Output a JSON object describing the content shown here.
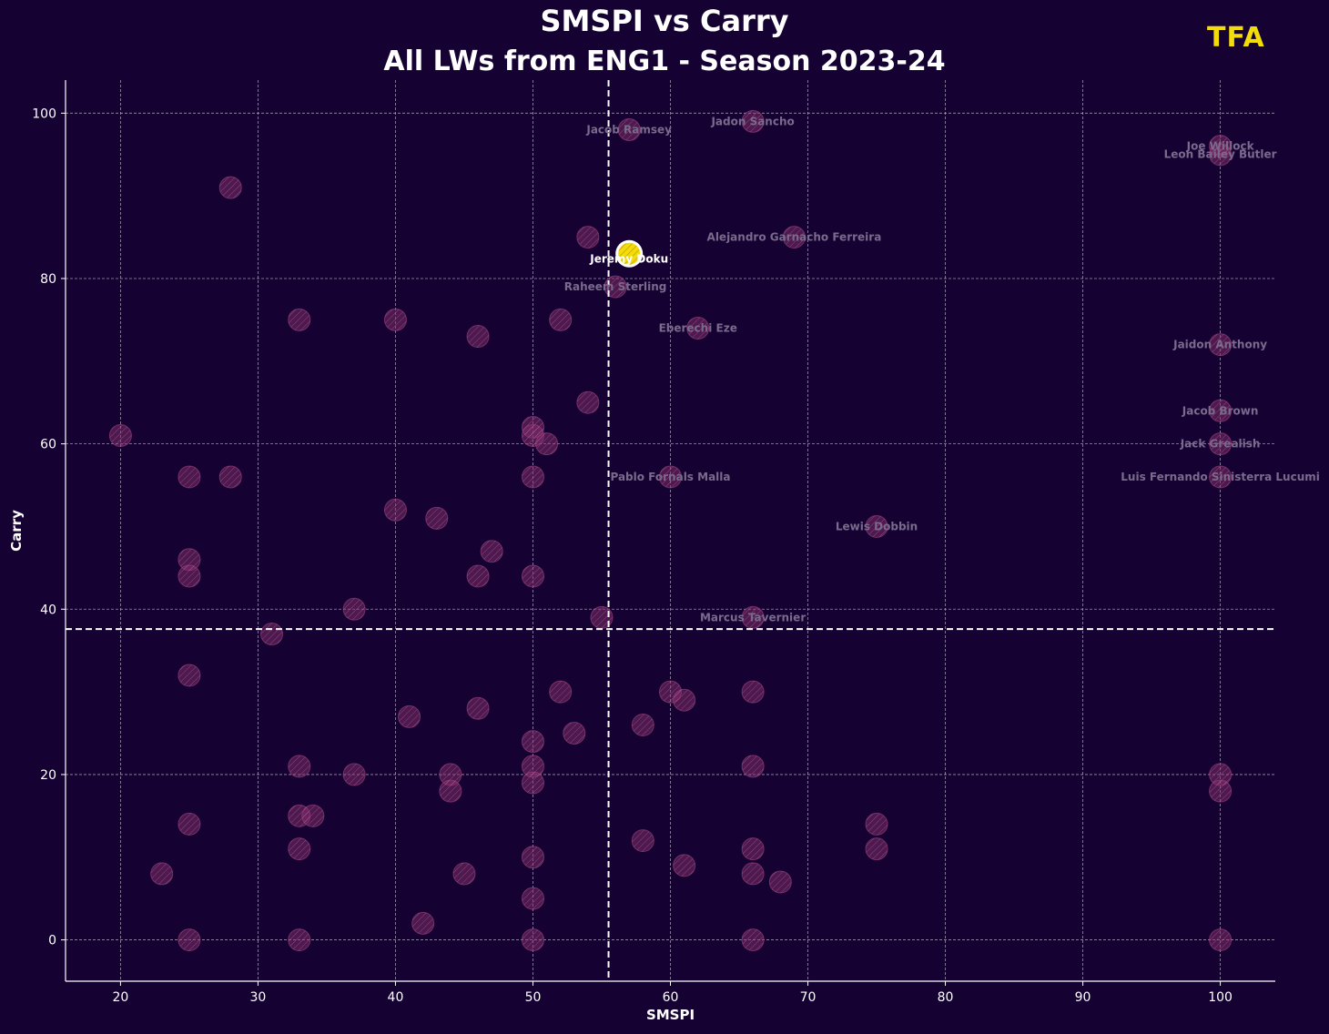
{
  "header": {
    "title": "SMSPI vs Carry",
    "subtitle": "All LWs from ENG1 - Season 2023-24",
    "logo": "TFA"
  },
  "colors": {
    "background": "#150233",
    "point": "#8a2f6e",
    "highlight": "#f2dc0b",
    "label": "#7a6a8c",
    "grid": "#bdb6c8"
  },
  "chart_data": {
    "type": "scatter",
    "title": "SMSPI vs Carry",
    "subtitle": "All LWs from ENG1 - Season 2023-24",
    "xlabel": "SMSPI",
    "ylabel": "Carry",
    "xlim": [
      16,
      104
    ],
    "ylim": [
      -5,
      104
    ],
    "xticks": [
      20,
      30,
      40,
      50,
      60,
      70,
      80,
      90,
      100
    ],
    "yticks": [
      0,
      20,
      40,
      60,
      80,
      100
    ],
    "grid": true,
    "mean_lines": {
      "x": 55.5,
      "y": 37.6
    },
    "highlight": {
      "name": "Jeremy Doku",
      "x": 57,
      "y": 83
    },
    "labeled_points": [
      {
        "name": "Jacob Ramsey",
        "x": 57,
        "y": 98
      },
      {
        "name": "Jadon Sancho",
        "x": 66,
        "y": 99
      },
      {
        "name": "Joe Willock",
        "x": 100,
        "y": 96
      },
      {
        "name": "Leon Bailey Butler",
        "x": 100,
        "y": 95
      },
      {
        "name": "Alejandro Garnacho Ferreira",
        "x": 69,
        "y": 85
      },
      {
        "name": "Raheem Sterling",
        "x": 56,
        "y": 79
      },
      {
        "name": "Eberechi Eze",
        "x": 62,
        "y": 74
      },
      {
        "name": "Jaidon Anthony",
        "x": 100,
        "y": 72
      },
      {
        "name": "Jacob Brown",
        "x": 100,
        "y": 64
      },
      {
        "name": "Jack Grealish",
        "x": 100,
        "y": 60
      },
      {
        "name": "Pablo Fornals Malla",
        "x": 60,
        "y": 56
      },
      {
        "name": "Luis Fernando Sinisterra Lucumi",
        "x": 100,
        "y": 56
      },
      {
        "name": "Lewis Dobbin",
        "x": 75,
        "y": 50
      },
      {
        "name": "Marcus Tavernier",
        "x": 66,
        "y": 39
      }
    ],
    "other_points": [
      [
        28,
        91
      ],
      [
        54,
        85
      ],
      [
        52,
        75
      ],
      [
        33,
        75
      ],
      [
        40,
        75
      ],
      [
        46,
        73
      ],
      [
        54,
        65
      ],
      [
        20,
        61
      ],
      [
        50,
        62
      ],
      [
        50,
        61
      ],
      [
        51,
        60
      ],
      [
        25,
        56
      ],
      [
        28,
        56
      ],
      [
        50,
        56
      ],
      [
        40,
        52
      ],
      [
        43,
        51
      ],
      [
        47,
        47
      ],
      [
        25,
        46
      ],
      [
        25,
        44
      ],
      [
        46,
        44
      ],
      [
        50,
        44
      ],
      [
        37,
        40
      ],
      [
        55,
        39
      ],
      [
        31,
        37
      ],
      [
        25,
        32
      ],
      [
        52,
        30
      ],
      [
        60,
        30
      ],
      [
        61,
        29
      ],
      [
        66,
        30
      ],
      [
        46,
        28
      ],
      [
        41,
        27
      ],
      [
        58,
        26
      ],
      [
        53,
        25
      ],
      [
        50,
        24
      ],
      [
        33,
        21
      ],
      [
        50,
        21
      ],
      [
        66,
        21
      ],
      [
        37,
        20
      ],
      [
        44,
        20
      ],
      [
        50,
        19
      ],
      [
        44,
        18
      ],
      [
        100,
        20
      ],
      [
        100,
        18
      ],
      [
        33,
        15
      ],
      [
        34,
        15
      ],
      [
        25,
        14
      ],
      [
        75,
        14
      ],
      [
        58,
        12
      ],
      [
        33,
        11
      ],
      [
        66,
        11
      ],
      [
        75,
        11
      ],
      [
        50,
        10
      ],
      [
        61,
        9
      ],
      [
        23,
        8
      ],
      [
        45,
        8
      ],
      [
        66,
        8
      ],
      [
        68,
        7
      ],
      [
        50,
        5
      ],
      [
        42,
        2
      ],
      [
        25,
        0
      ],
      [
        33,
        0
      ],
      [
        50,
        0
      ],
      [
        66,
        0
      ],
      [
        100,
        0
      ]
    ]
  }
}
